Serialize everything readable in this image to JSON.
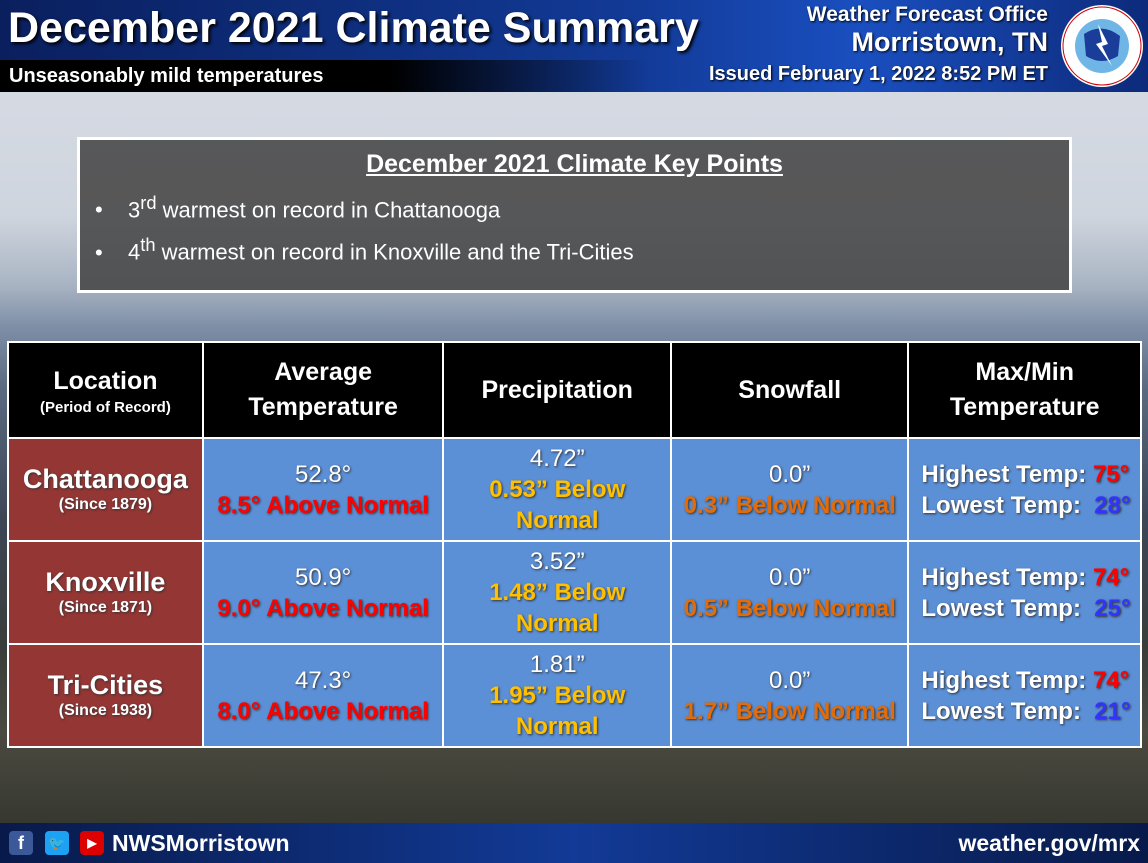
{
  "header": {
    "title": "December 2021 Climate Summary",
    "subtitle": "Unseasonably mild temperatures",
    "office_line1": "Weather Forecast Office",
    "office_line2": "Morristown, TN",
    "issued": "Issued February 1, 2022 8:52 PM ET",
    "logo_text": "NATIONAL WEATHER SERVICE"
  },
  "key_points": {
    "title": "December 2021 Climate Key Points",
    "items": [
      {
        "ord": "3",
        "sup": "rd",
        "text": " warmest on record in Chattanooga"
      },
      {
        "ord": "4",
        "sup": "th",
        "text": " warmest on record in Knoxville and the Tri-Cities"
      }
    ]
  },
  "table": {
    "headers": {
      "location": "Location",
      "location_sub": "(Period of Record)",
      "avg1": "Average",
      "avg2": "Temperature",
      "precip": "Precipitation",
      "snow": "Snowfall",
      "mm1": "Max/Min",
      "mm2": "Temperature"
    },
    "rows": [
      {
        "name": "Chattanooga",
        "since": "(Since 1879)",
        "avg": "52.8°",
        "avg_dep": "8.5° Above Normal",
        "precip": "4.72”",
        "precip_dep": "0.53” Below Normal",
        "snow": "0.0”",
        "snow_dep": "0.3” Below Normal",
        "high_label": "Highest Temp:",
        "high": "75°",
        "low_label": "Lowest Temp:",
        "low": "28°"
      },
      {
        "name": "Knoxville",
        "since": "(Since 1871)",
        "avg": "50.9°",
        "avg_dep": "9.0° Above Normal",
        "precip": "3.52”",
        "precip_dep": "1.48” Below Normal",
        "snow": "0.0”",
        "snow_dep": "0.5” Below Normal",
        "high_label": "Highest Temp:",
        "high": "74°",
        "low_label": "Lowest Temp:",
        "low": "25°"
      },
      {
        "name": "Tri-Cities",
        "since": "(Since 1938)",
        "avg": "47.3°",
        "avg_dep": "8.0° Above Normal",
        "precip": "1.81”",
        "precip_dep": "1.95” Below Normal",
        "snow": "0.0”",
        "snow_dep": "1.7” Below Normal",
        "high_label": "Highest Temp:",
        "high": "74°",
        "low_label": "Lowest Temp:",
        "low": "21°"
      }
    ]
  },
  "footer": {
    "handle": "NWSMorristown",
    "url": "weather.gov/mrx",
    "icons": [
      "facebook-icon",
      "twitter-icon",
      "youtube-icon"
    ]
  },
  "colors": {
    "above": "#ff0000",
    "precip_below": "#ffc000",
    "snow_below": "#e36c09",
    "low_temp": "#3333ff",
    "location_bg": "#943634",
    "cell_bg": "#5b8fd6"
  }
}
